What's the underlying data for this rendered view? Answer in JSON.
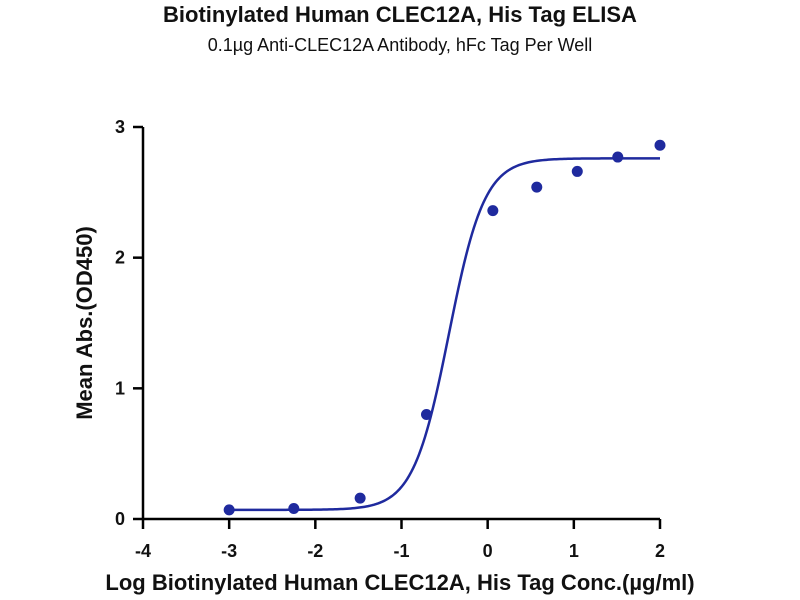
{
  "chart_data": {
    "type": "scatter",
    "title": "Biotinylated Human CLEC12A, His Tag ELISA",
    "subtitle": "0.1µg Anti-CLEC12A Antibody, hFc Tag Per Well",
    "xlabel": "Log Biotinylated Human CLEC12A, His Tag Conc.(µg/ml)",
    "ylabel": "Mean Abs.(OD450)",
    "xlim": [
      -4,
      2
    ],
    "ylim": [
      0,
      3
    ],
    "xticks": [
      -4,
      -3,
      -2,
      -1,
      0,
      1,
      2
    ],
    "yticks": [
      0,
      1,
      2,
      3
    ],
    "xtick_labels": [
      "-4",
      "-3",
      "-2",
      "-1",
      "0",
      "1",
      "2"
    ],
    "ytick_labels": [
      "0",
      "1",
      "2",
      "3"
    ],
    "grid": false,
    "color": "#1f2a9e",
    "points": [
      {
        "x": -3.0,
        "y": 0.07
      },
      {
        "x": -2.25,
        "y": 0.08
      },
      {
        "x": -1.48,
        "y": 0.16
      },
      {
        "x": -0.71,
        "y": 0.8
      },
      {
        "x": 0.06,
        "y": 2.36
      },
      {
        "x": 0.57,
        "y": 2.54
      },
      {
        "x": 1.04,
        "y": 2.66
      },
      {
        "x": 1.51,
        "y": 2.77
      },
      {
        "x": 2.0,
        "y": 2.86
      }
    ],
    "fit_curve": {
      "model": "4PL",
      "bottom": 0.07,
      "top": 2.76,
      "logEC50": -0.45,
      "hill": 2.1,
      "x_range": [
        -3,
        2
      ]
    }
  }
}
